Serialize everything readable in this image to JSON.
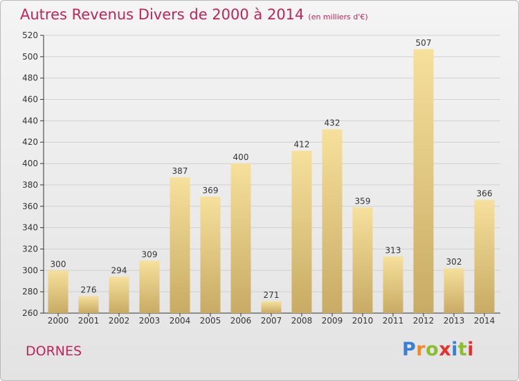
{
  "header": {
    "title": "Autres Revenus Divers de 2000 à 2014",
    "unit": "(en milliers d'€)"
  },
  "footer": {
    "town": "DORNES",
    "logo_text": "Proxiti"
  },
  "colors": {
    "title": "#c0245b",
    "bar_light": "#f6e09c",
    "bar_dark": "#c8ab64",
    "axis": "#333333",
    "grid": "#d0d0d0",
    "logo": [
      "#3b7fd1",
      "#f08a24",
      "#8bbe2c",
      "#e8302d",
      "#3b7fd1",
      "#8bbe2c",
      "#e8302d"
    ]
  },
  "chart_data": {
    "type": "bar",
    "categories": [
      "2000",
      "2001",
      "2002",
      "2003",
      "2004",
      "2005",
      "2006",
      "2007",
      "2008",
      "2009",
      "2010",
      "2011",
      "2012",
      "2013",
      "2014"
    ],
    "values": [
      300,
      276,
      294,
      309,
      387,
      369,
      400,
      271,
      412,
      432,
      359,
      313,
      507,
      302,
      366
    ],
    "ylim": [
      260,
      520
    ],
    "yticks": [
      260,
      280,
      300,
      320,
      340,
      360,
      380,
      400,
      420,
      440,
      460,
      480,
      500,
      520
    ],
    "grid": true
  }
}
